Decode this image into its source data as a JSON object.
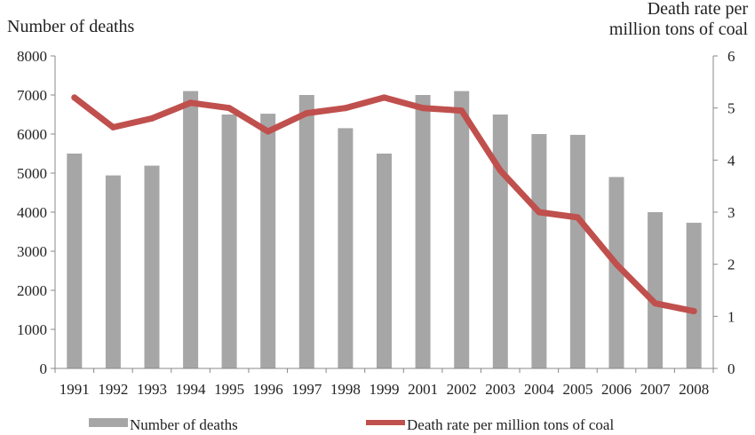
{
  "chart_data": {
    "type": "bar",
    "categories": [
      "1991",
      "1992",
      "1993",
      "1994",
      "1995",
      "1996",
      "1997",
      "1998",
      "1999",
      "2001",
      "2002",
      "2003",
      "2004",
      "2005",
      "2006",
      "2007",
      "2008"
    ],
    "series": [
      {
        "name": "Number of deaths",
        "kind": "bar",
        "axis": "left",
        "color": "#a6a6a6",
        "values": [
          5500,
          4940,
          5190,
          7100,
          6500,
          6520,
          7000,
          6150,
          5500,
          7000,
          7100,
          6500,
          6000,
          5980,
          4900,
          4000,
          3730
        ]
      },
      {
        "name": "Death rate per million tons of coal",
        "kind": "line",
        "axis": "right",
        "color": "#c0504d",
        "values": [
          5.2,
          4.63,
          4.8,
          5.1,
          5.0,
          4.55,
          4.9,
          5.0,
          5.2,
          5.0,
          4.95,
          3.8,
          3.0,
          2.9,
          2.0,
          1.25,
          1.1
        ]
      }
    ],
    "ylabel": "Number of deaths",
    "y2label_line1": "Death rate per",
    "y2label_line2": "million tons of coal",
    "ylim": [
      0,
      8000
    ],
    "yticks": [
      0,
      1000,
      2000,
      3000,
      4000,
      5000,
      6000,
      7000,
      8000
    ],
    "y2lim": [
      0,
      6
    ],
    "y2ticks": [
      0,
      1,
      2,
      3,
      4,
      5,
      6
    ],
    "grid": false,
    "legend_position": "bottom"
  }
}
